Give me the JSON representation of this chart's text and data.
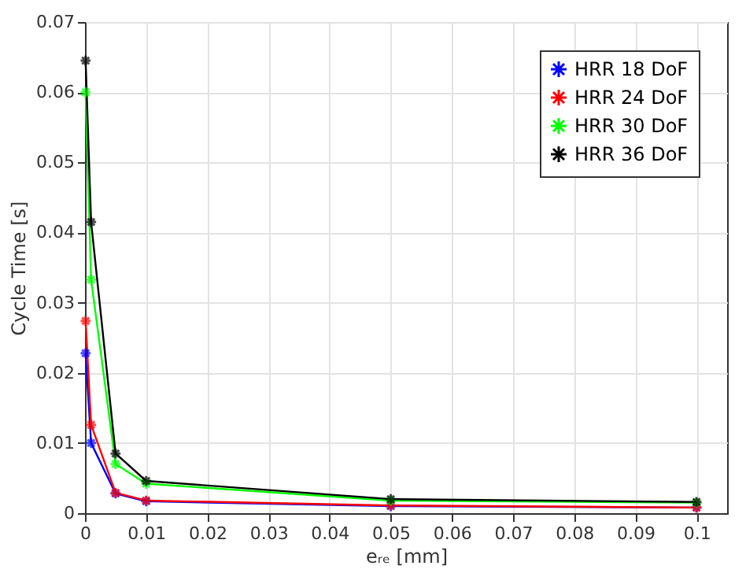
{
  "chart_data": {
    "type": "line",
    "xlabel": "eᵣₑ [mm]",
    "ylabel": "Cycle Time [s]",
    "x": [
      0.0001,
      0.001,
      0.005,
      0.01,
      0.05,
      0.1
    ],
    "series": [
      {
        "name": "HRR 18 DoF",
        "color": "#0000ff",
        "values": [
          0.0228,
          0.01,
          0.0028,
          0.0017,
          0.001,
          0.0008
        ]
      },
      {
        "name": "HRR 24 DoF",
        "color": "#ff0000",
        "values": [
          0.0274,
          0.0126,
          0.0029,
          0.0018,
          0.0011,
          0.0008
        ]
      },
      {
        "name": "HRR 30 DoF",
        "color": "#00ff00",
        "values": [
          0.06,
          0.0333,
          0.007,
          0.0042,
          0.0018,
          0.0015
        ]
      },
      {
        "name": "HRR 36 DoF",
        "color": "#000000",
        "values": [
          0.0645,
          0.0415,
          0.0085,
          0.0046,
          0.002,
          0.0016
        ]
      }
    ],
    "xlim": [
      0,
      0.105
    ],
    "xticks": [
      0,
      0.01,
      0.02,
      0.03,
      0.04,
      0.05,
      0.06,
      0.07,
      0.08,
      0.09,
      0.1
    ],
    "ylim": [
      0,
      0.07
    ],
    "yticks": [
      0,
      0.01,
      0.02,
      0.03,
      0.04,
      0.05,
      0.06,
      0.07
    ],
    "grid": true,
    "legend": "top right",
    "marker": "cross",
    "line_style": "solid"
  }
}
